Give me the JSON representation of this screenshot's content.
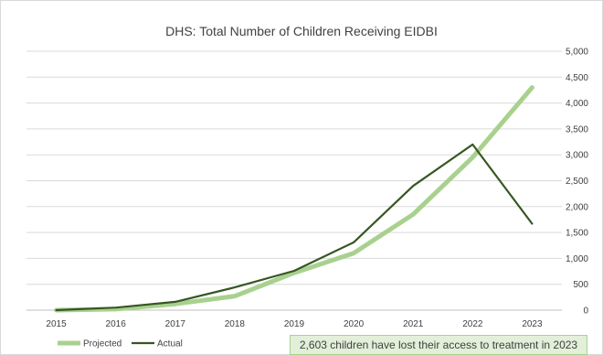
{
  "chart_data": {
    "type": "line",
    "title": "DHS: Total Number of Children Receiving EIDBI",
    "x": [
      "2015",
      "2016",
      "2017",
      "2018",
      "2019",
      "2020",
      "2021",
      "2022",
      "2023"
    ],
    "ylim": [
      0,
      5000
    ],
    "yticks": [
      "0",
      "500",
      "1,000",
      "1,500",
      "2,000",
      "2,500",
      "3,000",
      "3,500",
      "4,000",
      "4,500",
      "5,000"
    ],
    "ytick_values": [
      0,
      500,
      1000,
      1500,
      2000,
      2500,
      3000,
      3500,
      4000,
      4500,
      5000
    ],
    "y_axis_side": "right",
    "grid": true,
    "legend_position": "bottom-left",
    "series": [
      {
        "name": "Projected",
        "color": "#a9d18e",
        "values": [
          0,
          20,
          120,
          270,
          720,
          1100,
          1850,
          2950,
          4300
        ]
      },
      {
        "name": "Actual",
        "color": "#375623",
        "values": [
          0,
          50,
          160,
          440,
          760,
          1310,
          2400,
          3200,
          1670
        ]
      }
    ],
    "annotation": "2,603 children have lost their access to treatment in 2023"
  }
}
